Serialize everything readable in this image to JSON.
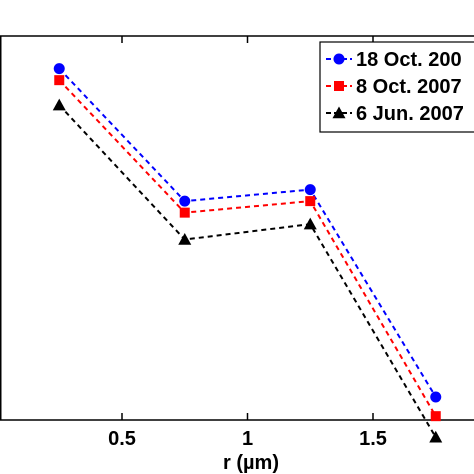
{
  "chart_data": {
    "type": "line",
    "xlabel": "r (µm)",
    "ylabel": "",
    "title": "",
    "xlim": [
      0,
      2
    ],
    "ylim": [
      0,
      1
    ],
    "x": [
      0.25,
      0.75,
      1.25,
      1.75
    ],
    "x_ticks": [
      0.5,
      1,
      1.5
    ],
    "x_tick_labels": [
      "0.5",
      "1",
      "1.5"
    ],
    "grid": false,
    "legend_position": "top-right",
    "series": [
      {
        "name": "18 Oct. 200",
        "color": "#0000ff",
        "marker": "circle",
        "line_style": "dashed",
        "values": [
          0.915,
          0.57,
          0.6,
          0.06
        ]
      },
      {
        "name": "8 Oct. 2007",
        "color": "#ff0000",
        "marker": "square",
        "line_style": "dashed",
        "values": [
          0.885,
          0.54,
          0.57,
          0.01
        ]
      },
      {
        "name": "6 Jun. 2007",
        "color": "#000000",
        "marker": "triangle",
        "line_style": "dashed",
        "values": [
          0.82,
          0.47,
          0.51,
          -0.045
        ]
      }
    ]
  }
}
